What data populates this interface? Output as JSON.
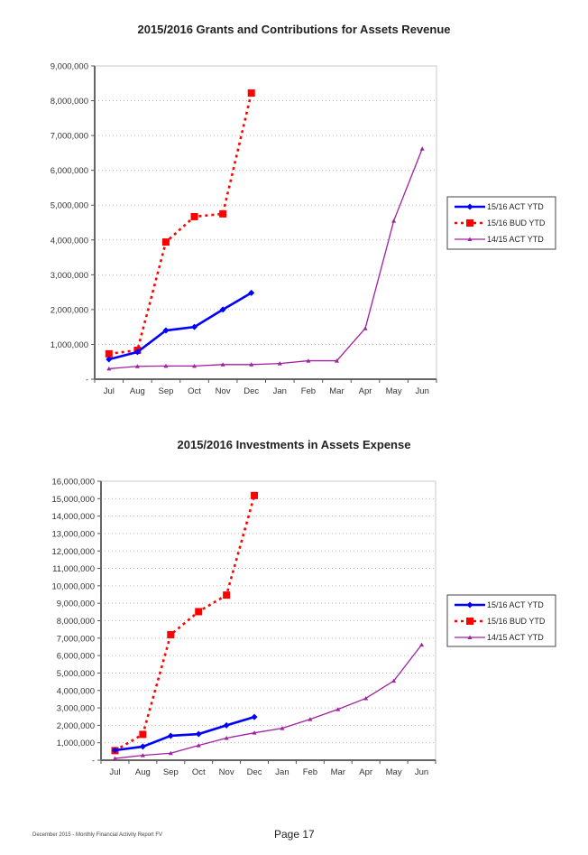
{
  "chart_data": [
    {
      "type": "line",
      "title": "2015/2016 Grants and Contributions for Assets Revenue",
      "xlabel": "",
      "ylabel": "",
      "categories": [
        "Jul",
        "Aug",
        "Sep",
        "Oct",
        "Nov",
        "Dec",
        "Jan",
        "Feb",
        "Mar",
        "Apr",
        "May",
        "Jun"
      ],
      "ylim": [
        0,
        9000000
      ],
      "yticks": [
        0,
        1000000,
        2000000,
        3000000,
        4000000,
        5000000,
        6000000,
        7000000,
        8000000,
        9000000
      ],
      "ytick_labels": [
        "-",
        "1,000,000",
        "2,000,000",
        "3,000,000",
        "4,000,000",
        "5,000,000",
        "6,000,000",
        "7,000,000",
        "8,000,000",
        "9,000,000"
      ],
      "grid": true,
      "legend_position": "right",
      "series": [
        {
          "name": "15/16 ACT YTD",
          "color": "#0000ff",
          "style": "solid",
          "marker": "diamond",
          "values": [
            570000,
            780000,
            1400000,
            1500000,
            2000000,
            2480000
          ]
        },
        {
          "name": "15/16 BUD YTD",
          "color": "#ff0000",
          "style": "dashed",
          "marker": "square",
          "values": [
            730000,
            830000,
            3940000,
            4670000,
            4750000,
            8220000
          ]
        },
        {
          "name": "14/15 ACT YTD",
          "color": "#a020a0",
          "style": "solid",
          "marker": "triangle",
          "values": [
            300000,
            370000,
            380000,
            380000,
            420000,
            420000,
            450000,
            530000,
            530000,
            1460000,
            4550000,
            6620000
          ]
        }
      ]
    },
    {
      "type": "line",
      "title": "2015/2016 Investments in Assets Expense",
      "xlabel": "",
      "ylabel": "",
      "categories": [
        "Jul",
        "Aug",
        "Sep",
        "Oct",
        "Nov",
        "Dec",
        "Jan",
        "Feb",
        "Mar",
        "Apr",
        "May",
        "Jun"
      ],
      "ylim": [
        0,
        16000000
      ],
      "yticks": [
        0,
        1000000,
        2000000,
        3000000,
        4000000,
        5000000,
        6000000,
        7000000,
        8000000,
        9000000,
        10000000,
        11000000,
        12000000,
        13000000,
        14000000,
        15000000,
        16000000
      ],
      "ytick_labels": [
        "-",
        "1,000,000",
        "2,000,000",
        "3,000,000",
        "4,000,000",
        "5,000,000",
        "6,000,000",
        "7,000,000",
        "8,000,000",
        "9,000,000",
        "10,000,000",
        "11,000,000",
        "12,000,000",
        "13,000,000",
        "14,000,000",
        "15,000,000",
        "16,000,000"
      ],
      "grid": true,
      "legend_position": "right",
      "series": [
        {
          "name": "15/16 ACT YTD",
          "color": "#0000ff",
          "style": "solid",
          "marker": "diamond",
          "values": [
            570000,
            780000,
            1400000,
            1500000,
            2000000,
            2480000
          ]
        },
        {
          "name": "15/16 BUD YTD",
          "color": "#ff0000",
          "style": "dashed",
          "marker": "square",
          "values": [
            550000,
            1480000,
            7200000,
            8520000,
            9470000,
            15180000
          ]
        },
        {
          "name": "14/15 ACT YTD",
          "color": "#a020a0",
          "style": "solid",
          "marker": "triangle",
          "values": [
            100000,
            280000,
            400000,
            850000,
            1270000,
            1570000,
            1830000,
            2350000,
            2920000,
            3550000,
            4550000,
            6620000
          ]
        }
      ]
    }
  ],
  "footer": {
    "report_label": "December 2015 - Monthly Financial Activity Report FV",
    "page_label": "Page 17"
  }
}
